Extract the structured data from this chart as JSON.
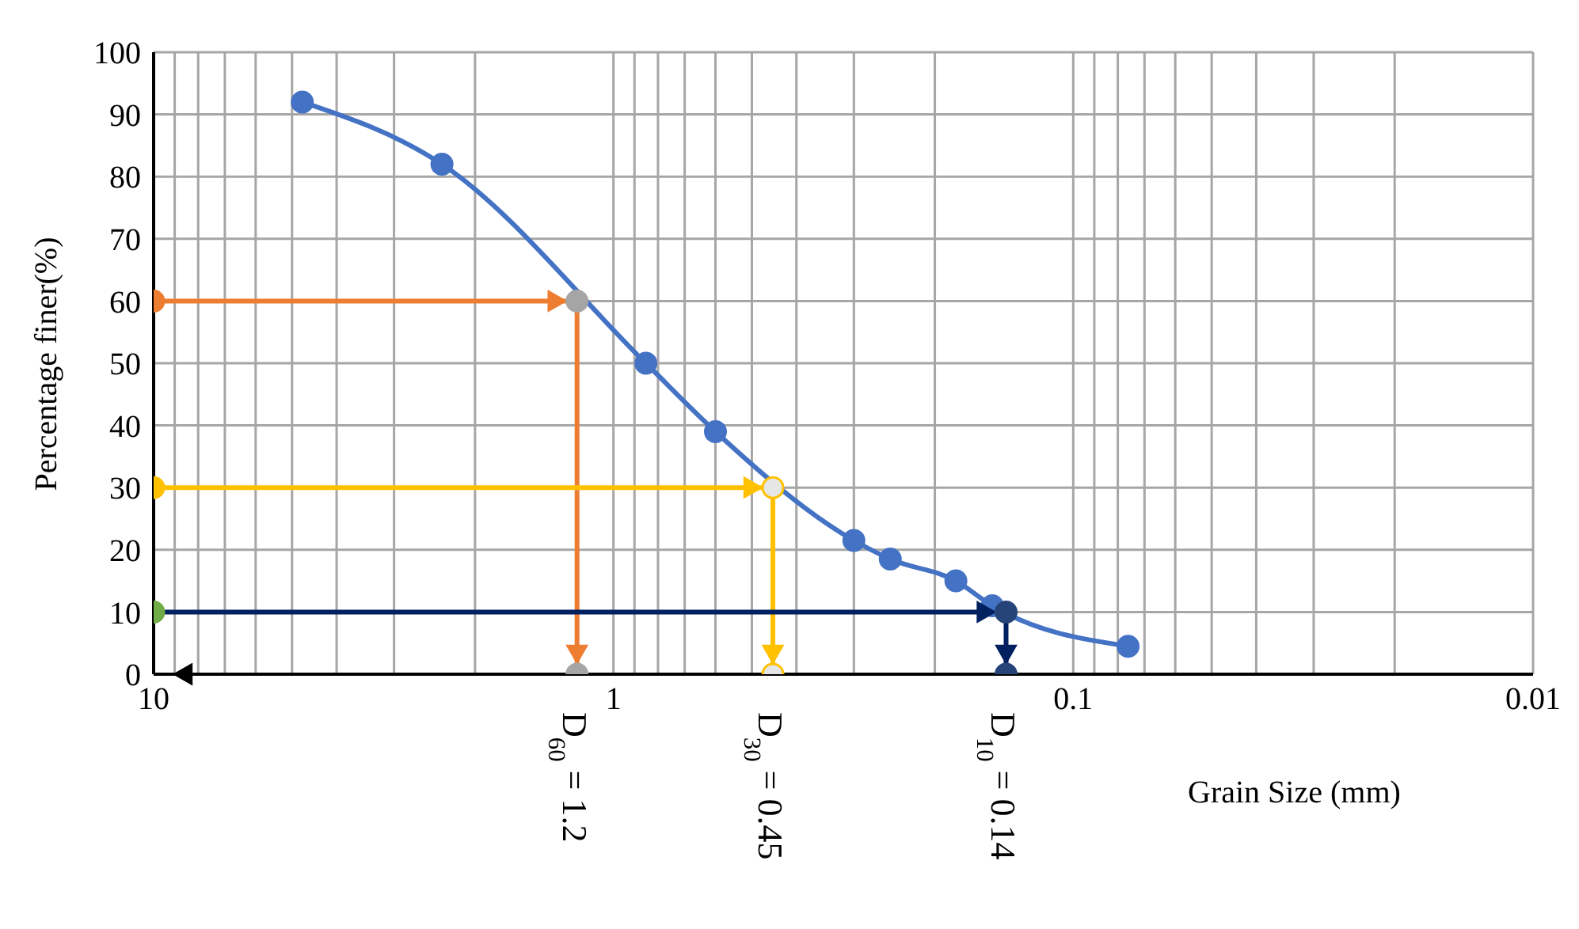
{
  "chart_data": {
    "type": "line",
    "xlabel": "Grain Size (mm)",
    "ylabel": "Percentage finer(%)",
    "log": "x",
    "grid": true,
    "marker": "circle",
    "xlim": [
      10,
      0.01
    ],
    "xticks": [
      10,
      {
        "value": 9,
        "label": null
      },
      {
        "value": 8,
        "label": null
      },
      {
        "value": 7,
        "label": null
      },
      {
        "value": 6,
        "label": null
      },
      {
        "value": 5,
        "label": null
      },
      {
        "value": 4,
        "label": null
      },
      {
        "value": 3,
        "label": null
      },
      {
        "value": 2,
        "label": null
      },
      1,
      {
        "value": 0.9,
        "label": null
      },
      {
        "value": 0.8,
        "label": null
      },
      {
        "value": 0.7,
        "label": null
      },
      {
        "value": 0.6,
        "label": null
      },
      {
        "value": 0.5,
        "label": null
      },
      {
        "value": 0.4,
        "label": null
      },
      {
        "value": 0.3,
        "label": null
      },
      {
        "value": 0.2,
        "label": null
      },
      0.1,
      {
        "value": 0.09,
        "label": null
      },
      {
        "value": 0.08,
        "label": null
      },
      {
        "value": 0.07,
        "label": null
      },
      {
        "value": 0.06,
        "label": null
      },
      {
        "value": 0.05,
        "label": null
      },
      {
        "value": 0.04,
        "label": null
      },
      {
        "value": 0.03,
        "label": null
      },
      {
        "value": 0.02,
        "label": null
      },
      0.01
    ],
    "ylim": [
      0,
      100
    ],
    "yticks": [
      0,
      10,
      20,
      30,
      40,
      50,
      60,
      70,
      80,
      90,
      100
    ],
    "series": [
      {
        "color": "#4472c4",
        "x": [
          4.75,
          2.36,
          0.85,
          0.6,
          0.3,
          0.25,
          0.18,
          0.15,
          0.076
        ],
        "values": [
          92,
          82,
          50,
          39,
          21.5,
          18.5,
          15,
          11,
          4.5
        ]
      },
      {
        "color": "#ed7d31",
        "x": [
          10,
          1.2,
          1.2
        ],
        "values": [
          60,
          60,
          0
        ],
        "colors": [
          "#ed7d31",
          "#a5a5a5",
          "#a5a5a5"
        ]
      },
      {
        "color": "#ffc000",
        "x": [
          10,
          0.45,
          0.45
        ],
        "values": [
          30,
          30,
          0
        ],
        "colors": [
          "#ffc000",
          "#e7e6e6",
          "#e7e6e6"
        ]
      },
      {
        "color": "#002060",
        "x": [
          10,
          0.14,
          0.14
        ],
        "values": [
          10,
          10,
          0
        ],
        "colors": [
          "#70ad47",
          "#264478",
          "#264478"
        ]
      }
    ],
    "annotations": [
      {
        "text": "D$_{60}$ = 1.2",
        "x": 1.2,
        "y": 0
      },
      {
        "text": "D$_{30}$ = 0.45",
        "x": 0.45,
        "y": 0
      },
      {
        "text": "D$_{10}$ = 0.14",
        "x": 0.14,
        "y": 0
      }
    ]
  }
}
